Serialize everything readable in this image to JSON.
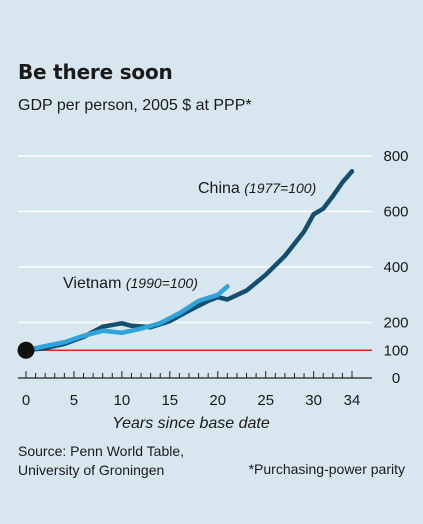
{
  "header": {
    "title": "Be there soon",
    "subtitle": "GDP per person, 2005 $ at PPP*"
  },
  "footer": {
    "source_line1": "Source: Penn World Table,",
    "source_line2": "University of Groningen",
    "footnote": "*Purchasing-power parity"
  },
  "colors": {
    "background": "#d8e6ef",
    "china": "#144e6e",
    "vietnam": "#2fa3dc",
    "reference_line": "#e0251f",
    "grid": "#ffffff",
    "marker": "#111111"
  },
  "chart_data": {
    "type": "line",
    "title": "Be there soon",
    "subtitle": "GDP per person, 2005 $ at PPP*",
    "xlabel": "Years since base date",
    "ylabel": "",
    "xlim": [
      0,
      34
    ],
    "ylim": [
      0,
      800
    ],
    "x_ticks": [
      0,
      5,
      10,
      15,
      20,
      25,
      30,
      34
    ],
    "y_ticks": [
      0,
      100,
      200,
      400,
      600,
      800
    ],
    "y_axis_side": "right",
    "grid": true,
    "reference_line": {
      "y": 100
    },
    "start_marker": {
      "x": 0,
      "y": 100
    },
    "series": [
      {
        "name": "China",
        "label": "China",
        "label_note": "(1977=100)",
        "x": [
          0,
          2,
          4,
          6,
          8,
          10,
          11,
          13,
          15,
          17,
          19,
          20,
          21,
          23,
          25,
          27,
          29,
          30,
          31,
          32,
          33,
          34
        ],
        "values": [
          100,
          108,
          123,
          148,
          185,
          197,
          188,
          183,
          205,
          243,
          278,
          291,
          283,
          315,
          372,
          440,
          528,
          590,
          610,
          655,
          705,
          745
        ]
      },
      {
        "name": "Vietnam",
        "label": "Vietnam",
        "label_note": "(1990=100)",
        "x": [
          0,
          2,
          4,
          6,
          8,
          10,
          12,
          14,
          16,
          18,
          20,
          21
        ],
        "values": [
          100,
          115,
          129,
          152,
          170,
          163,
          178,
          198,
          233,
          278,
          300,
          330
        ]
      }
    ]
  }
}
